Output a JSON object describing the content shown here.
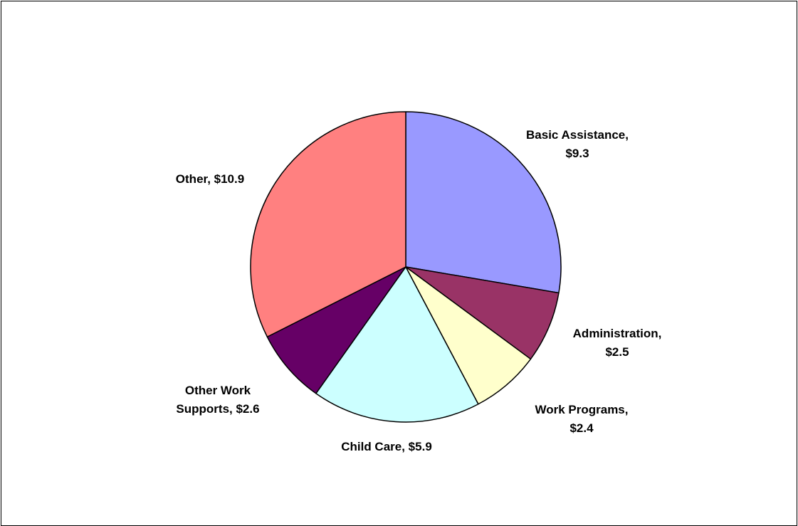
{
  "chart_data": {
    "type": "pie",
    "title": "",
    "slices": [
      {
        "label_lines": [
          "Basic Assistance,",
          "$9.3"
        ],
        "value": 9.3,
        "color": "#9999FF"
      },
      {
        "label_lines": [
          "Administration,",
          "$2.5"
        ],
        "value": 2.5,
        "color": "#993366"
      },
      {
        "label_lines": [
          "Work Programs,",
          "$2.4"
        ],
        "value": 2.4,
        "color": "#FFFFCC"
      },
      {
        "label_lines": [
          "Child Care,  $5.9"
        ],
        "value": 5.9,
        "color": "#CCFFFF"
      },
      {
        "label_lines": [
          "Other Work",
          "Supports,  $2.6"
        ],
        "value": 2.6,
        "color": "#660066"
      },
      {
        "label_lines": [
          "Other,  $10.9"
        ],
        "value": 10.9,
        "color": "#FF8080"
      }
    ]
  }
}
